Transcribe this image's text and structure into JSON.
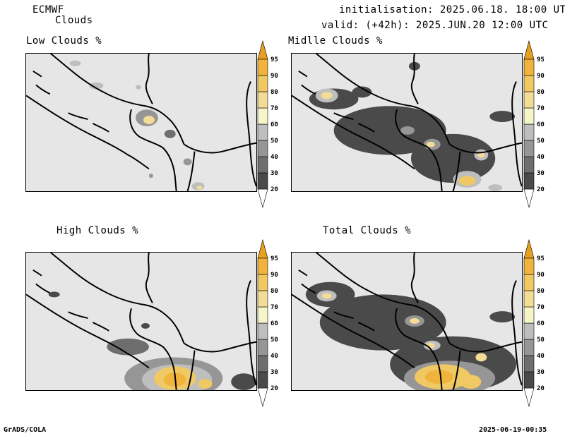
{
  "header": {
    "model": "ECMWF",
    "product": "Clouds",
    "init": "initialisation: 2025.06.18. 18:00 UTC",
    "valid": "valid: (+42h): 2025.JUN.20 12:00 UTC"
  },
  "panels": [
    {
      "title": "Low Clouds %"
    },
    {
      "title": "Midlle Clouds %"
    },
    {
      "title": "High Clouds %"
    },
    {
      "title": "Total Clouds %"
    }
  ],
  "colorbar": {
    "levels": [
      "20",
      "30",
      "40",
      "50",
      "60",
      "70",
      "80",
      "90",
      "95"
    ],
    "colors": [
      "#ffffff",
      "#4a4a4a",
      "#6e6e6e",
      "#969696",
      "#bebebe",
      "#f5f5c8",
      "#f2dc96",
      "#f0c864",
      "#f0b43c",
      "#e6a020"
    ]
  },
  "footer": {
    "left": "GrADS/COLA",
    "right": "2025-06-19-00:35"
  }
}
